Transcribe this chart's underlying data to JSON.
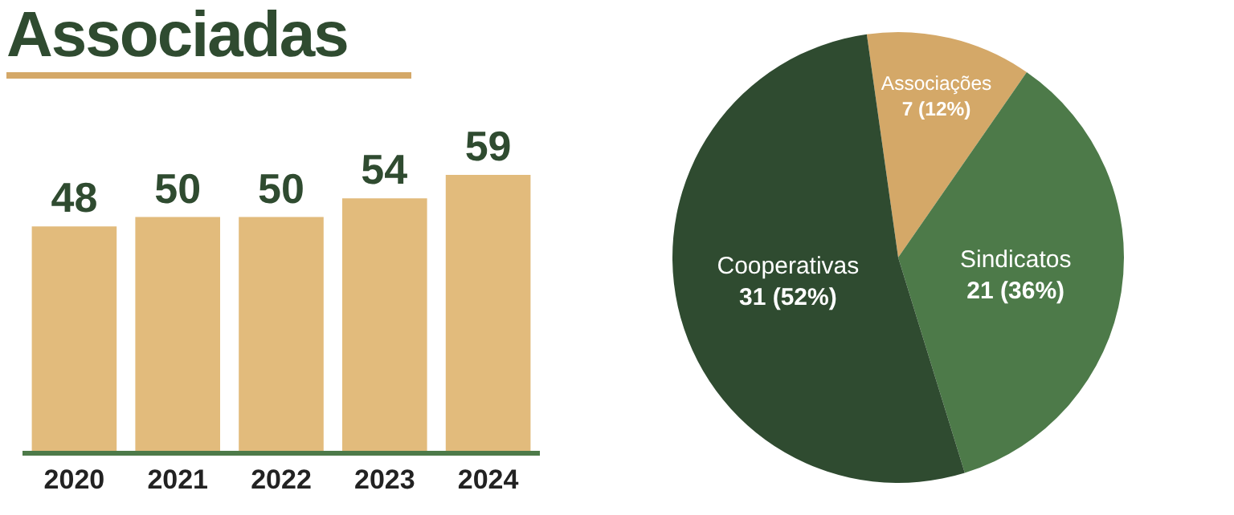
{
  "chart_data": [
    {
      "type": "bar",
      "title": "Associadas",
      "categories": [
        "2020",
        "2021",
        "2022",
        "2023",
        "2024"
      ],
      "values": [
        48,
        50,
        50,
        54,
        59
      ],
      "color": "#e2bb7c",
      "data_labels": true,
      "tick_labels": "x"
    },
    {
      "type": "pie",
      "categories": [
        "Associações",
        "Sindicatos",
        "Cooperativas"
      ],
      "values": [
        7,
        21,
        31
      ],
      "colors": [
        "#d4a868",
        "#4d7a49",
        "#2f4b30"
      ],
      "value_labels": [
        "7 (12%)",
        "21 (36%)",
        "31 (52%)"
      ]
    }
  ]
}
